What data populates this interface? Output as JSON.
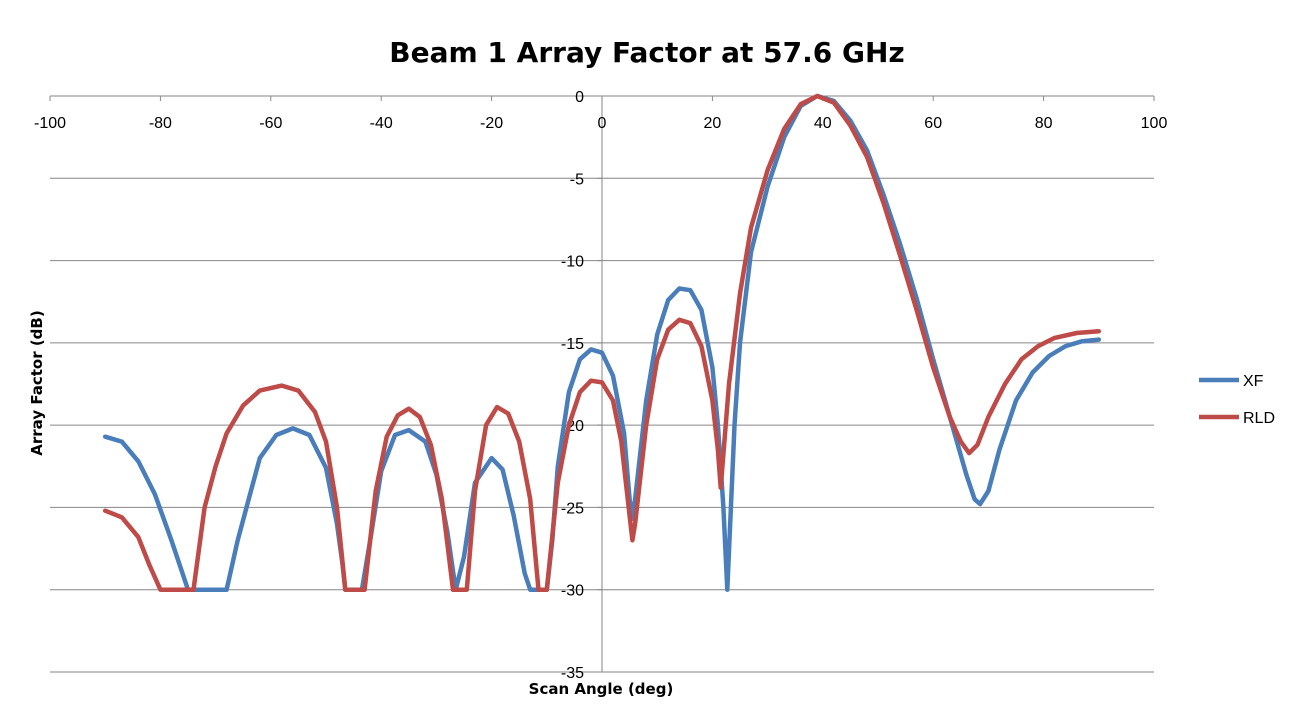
{
  "chart_data": {
    "type": "line",
    "title": "Beam 1 Array Factor at 57.6 GHz",
    "xlabel": "Scan Angle (deg)",
    "ylabel": "Array Factor (dB)",
    "xlim": [
      -100,
      100
    ],
    "ylim": [
      -35,
      0
    ],
    "xticks": [
      -100,
      -80,
      -60,
      -40,
      -20,
      0,
      20,
      40,
      60,
      80,
      100
    ],
    "yticks": [
      0,
      -5,
      -10,
      -15,
      -20,
      -25,
      -30,
      -35
    ],
    "grid": "horizontal",
    "legend_position": "right",
    "colors": {
      "XF": "#4a7ebb",
      "RLD": "#be4b48",
      "grid": "#868686"
    },
    "series": [
      {
        "name": "XF",
        "points": [
          [
            -90,
            -20.7
          ],
          [
            -87,
            -21.0
          ],
          [
            -84,
            -22.2
          ],
          [
            -81,
            -24.2
          ],
          [
            -78,
            -27.0
          ],
          [
            -75,
            -30
          ],
          [
            -68,
            -30
          ],
          [
            -66,
            -27.0
          ],
          [
            -64,
            -24.5
          ],
          [
            -62,
            -22.0
          ],
          [
            -59,
            -20.6
          ],
          [
            -56,
            -20.2
          ],
          [
            -53,
            -20.6
          ],
          [
            -50,
            -22.6
          ],
          [
            -48,
            -26.0
          ],
          [
            -47,
            -28.5
          ],
          [
            -46.5,
            -30
          ],
          [
            -43.5,
            -30
          ],
          [
            -42,
            -27.0
          ],
          [
            -40,
            -22.8
          ],
          [
            -37.5,
            -20.6
          ],
          [
            -35,
            -20.3
          ],
          [
            -32,
            -21.0
          ],
          [
            -30,
            -23.0
          ],
          [
            -28,
            -26.5
          ],
          [
            -26.5,
            -30
          ],
          [
            -25,
            -28.0
          ],
          [
            -23,
            -23.5
          ],
          [
            -20,
            -22.0
          ],
          [
            -18,
            -22.7
          ],
          [
            -16,
            -25.5
          ],
          [
            -14,
            -29.0
          ],
          [
            -13,
            -30
          ],
          [
            -10,
            -30
          ],
          [
            -9,
            -27.0
          ],
          [
            -8,
            -22.5
          ],
          [
            -6,
            -18.0
          ],
          [
            -4,
            -16.0
          ],
          [
            -2,
            -15.4
          ],
          [
            0,
            -15.6
          ],
          [
            2,
            -17.0
          ],
          [
            4,
            -20.5
          ],
          [
            5,
            -24.5
          ],
          [
            5.5,
            -25.7
          ],
          [
            6,
            -24.5
          ],
          [
            8,
            -18.5
          ],
          [
            10,
            -14.5
          ],
          [
            12,
            -12.4
          ],
          [
            14,
            -11.7
          ],
          [
            16,
            -11.8
          ],
          [
            18,
            -13.0
          ],
          [
            20,
            -16.5
          ],
          [
            21,
            -20.0
          ],
          [
            22,
            -25.0
          ],
          [
            22.7,
            -30
          ],
          [
            24,
            -20.0
          ],
          [
            25,
            -15.0
          ],
          [
            27,
            -9.5
          ],
          [
            30,
            -5.5
          ],
          [
            33,
            -2.5
          ],
          [
            36,
            -0.6
          ],
          [
            39,
            0
          ],
          [
            42,
            -0.3
          ],
          [
            45,
            -1.5
          ],
          [
            48,
            -3.3
          ],
          [
            51,
            -6.0
          ],
          [
            54,
            -9.0
          ],
          [
            57,
            -12.3
          ],
          [
            60,
            -16.0
          ],
          [
            63,
            -19.5
          ],
          [
            66,
            -23.0
          ],
          [
            67.5,
            -24.5
          ],
          [
            68.5,
            -24.8
          ],
          [
            70,
            -24.0
          ],
          [
            72,
            -21.5
          ],
          [
            75,
            -18.5
          ],
          [
            78,
            -16.8
          ],
          [
            81,
            -15.8
          ],
          [
            84,
            -15.2
          ],
          [
            87,
            -14.9
          ],
          [
            90,
            -14.8
          ]
        ]
      },
      {
        "name": "RLD",
        "points": [
          [
            -90,
            -25.2
          ],
          [
            -87,
            -25.6
          ],
          [
            -84,
            -26.8
          ],
          [
            -82,
            -28.5
          ],
          [
            -80,
            -30
          ],
          [
            -74,
            -30
          ],
          [
            -72,
            -25.0
          ],
          [
            -70,
            -22.5
          ],
          [
            -68,
            -20.5
          ],
          [
            -65,
            -18.8
          ],
          [
            -62,
            -17.9
          ],
          [
            -58,
            -17.6
          ],
          [
            -55,
            -17.9
          ],
          [
            -52,
            -19.2
          ],
          [
            -50,
            -21.0
          ],
          [
            -48,
            -25.0
          ],
          [
            -46.5,
            -30
          ],
          [
            -43,
            -30
          ],
          [
            -41,
            -24.0
          ],
          [
            -39,
            -20.7
          ],
          [
            -37,
            -19.4
          ],
          [
            -35,
            -19.0
          ],
          [
            -33,
            -19.5
          ],
          [
            -31,
            -21.2
          ],
          [
            -29,
            -24.5
          ],
          [
            -27,
            -30
          ],
          [
            -24.5,
            -30
          ],
          [
            -23,
            -24.0
          ],
          [
            -21,
            -20.0
          ],
          [
            -19,
            -18.9
          ],
          [
            -17,
            -19.3
          ],
          [
            -15,
            -21.0
          ],
          [
            -13,
            -24.5
          ],
          [
            -11.5,
            -30
          ],
          [
            -10,
            -30
          ],
          [
            -8,
            -23.5
          ],
          [
            -6,
            -20.0
          ],
          [
            -4,
            -18.0
          ],
          [
            -2,
            -17.3
          ],
          [
            0,
            -17.4
          ],
          [
            2,
            -18.5
          ],
          [
            3.5,
            -21.0
          ],
          [
            5,
            -25.5
          ],
          [
            5.5,
            -27.0
          ],
          [
            6,
            -26.0
          ],
          [
            8,
            -20.0
          ],
          [
            10,
            -16.0
          ],
          [
            12,
            -14.2
          ],
          [
            14,
            -13.6
          ],
          [
            16,
            -13.8
          ],
          [
            18,
            -15.2
          ],
          [
            20,
            -18.5
          ],
          [
            21,
            -21.5
          ],
          [
            21.5,
            -23.8
          ],
          [
            23,
            -17.5
          ],
          [
            25,
            -12.0
          ],
          [
            27,
            -8.0
          ],
          [
            30,
            -4.5
          ],
          [
            33,
            -2.0
          ],
          [
            36,
            -0.5
          ],
          [
            39,
            0
          ],
          [
            42,
            -0.4
          ],
          [
            45,
            -1.8
          ],
          [
            48,
            -3.7
          ],
          [
            51,
            -6.5
          ],
          [
            54,
            -9.7
          ],
          [
            57,
            -13.0
          ],
          [
            60,
            -16.5
          ],
          [
            63,
            -19.5
          ],
          [
            65,
            -21.0
          ],
          [
            66.5,
            -21.7
          ],
          [
            68,
            -21.2
          ],
          [
            70,
            -19.5
          ],
          [
            73,
            -17.5
          ],
          [
            76,
            -16.0
          ],
          [
            79,
            -15.2
          ],
          [
            82,
            -14.7
          ],
          [
            86,
            -14.4
          ],
          [
            90,
            -14.3
          ]
        ]
      }
    ]
  }
}
